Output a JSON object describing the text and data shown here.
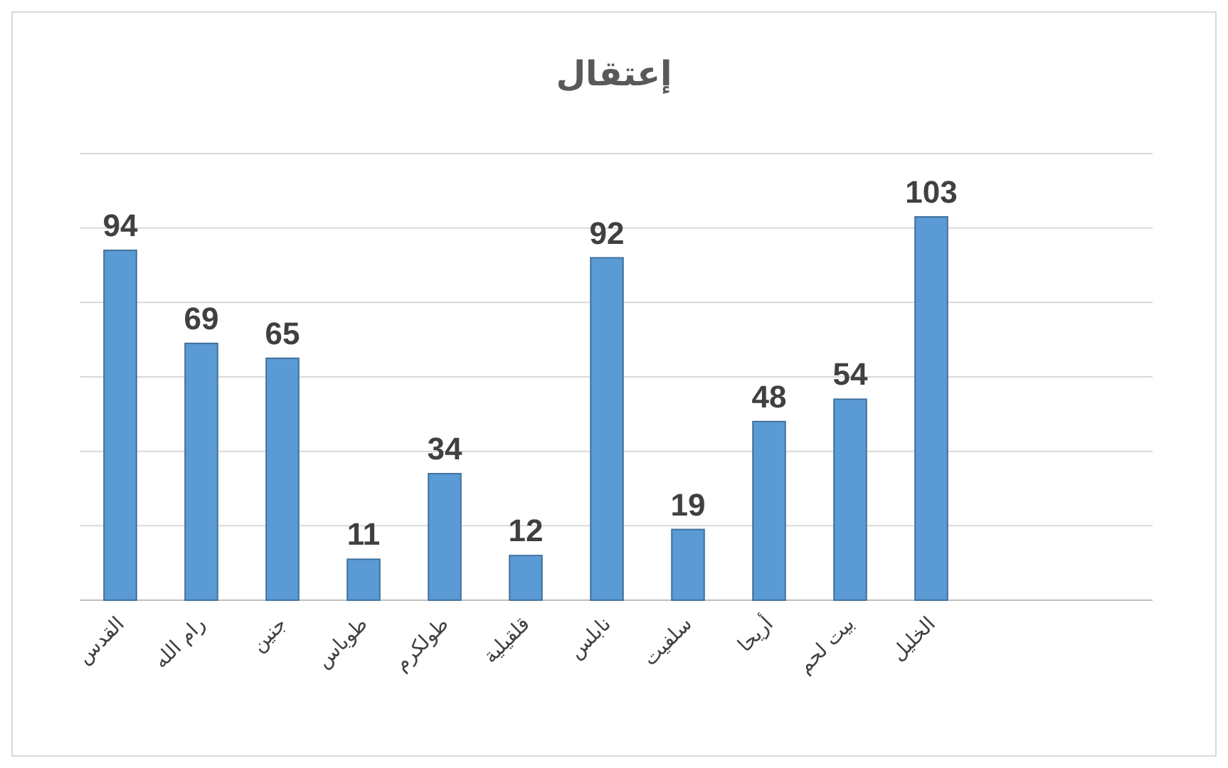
{
  "chart_data": {
    "type": "bar",
    "title": "إعتقال",
    "categories": [
      "القدس",
      "رام الله",
      "جنين",
      "طوباس",
      "طولكرم",
      "قلقيلية",
      "نابلس",
      "سلفيت",
      "أريحا",
      "بيت لحم",
      "الخليل"
    ],
    "values": [
      94,
      69,
      65,
      11,
      34,
      12,
      92,
      19,
      48,
      54,
      103
    ],
    "color": "#5b9bd5",
    "data_labels": true,
    "grid": "y",
    "tick_labels": "x",
    "ylim": [
      0,
      120
    ],
    "yticks": [
      {
        "value": 0,
        "label": null
      },
      {
        "value": 20,
        "label": null
      },
      {
        "value": 40,
        "label": null
      },
      {
        "value": 60,
        "label": null
      },
      {
        "value": 80,
        "label": null
      },
      {
        "value": 100,
        "label": null
      },
      {
        "value": 120,
        "label": null
      }
    ]
  }
}
